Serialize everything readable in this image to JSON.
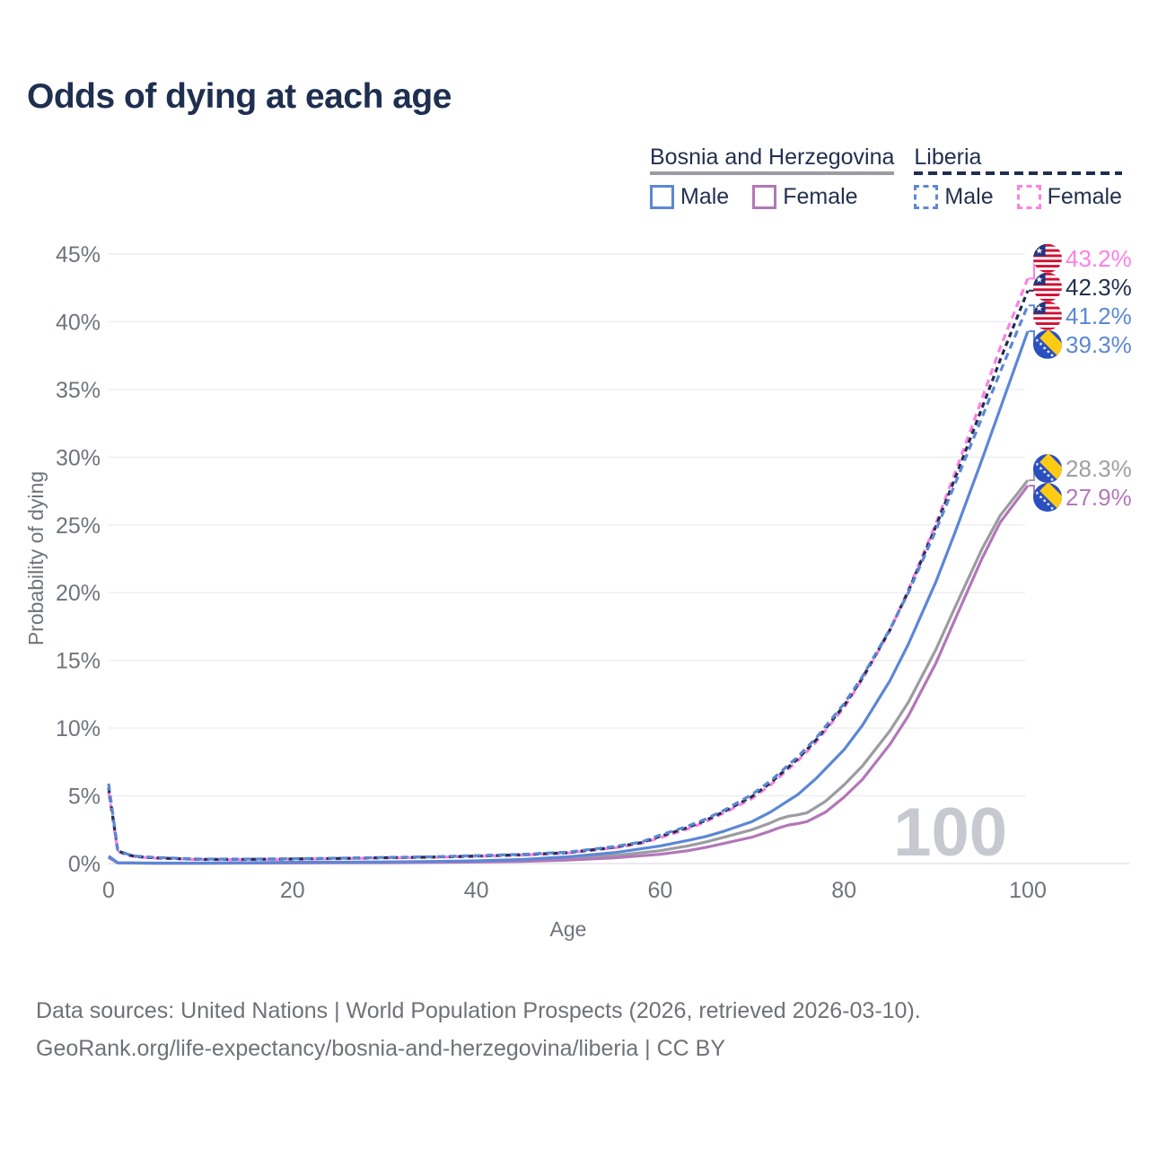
{
  "title": "Odds of dying at each age",
  "watermark": "100",
  "footer": {
    "line1": "Data sources: United Nations | World Population Prospects (2026, retrieved 2026-03-10).",
    "line2": "GeoRank.org/life-expectancy/bosnia-and-herzegovina/liberia | CC BY"
  },
  "legend": {
    "groups": [
      {
        "id": "bosnia",
        "label": "Bosnia and Herzegovina",
        "line_style": "solid",
        "line_color": "#9B9BA1",
        "items": [
          {
            "label": "Male",
            "color": "#5C87D6",
            "dashed": false
          },
          {
            "label": "Female",
            "color": "#B277B8",
            "dashed": false
          }
        ]
      },
      {
        "id": "liberia",
        "label": "Liberia",
        "line_style": "dashed",
        "line_color": "#1F2D4E",
        "items": [
          {
            "label": "Male",
            "color": "#5C87D6",
            "dashed": true
          },
          {
            "label": "Female",
            "color": "#FF80E3",
            "dashed": true
          }
        ]
      }
    ]
  },
  "flags": {
    "liberia": {
      "red": "#D21034",
      "white": "#FFFFFF",
      "blue": "#24357F",
      "star": "#FFFFFF"
    },
    "bosnia": {
      "blue": "#2A4FC0",
      "yellow": "#FECB14",
      "star": "#FFFFFF"
    }
  },
  "chart_data": {
    "type": "line",
    "title": "Odds of dying at each age",
    "xlabel": "Age",
    "ylabel": "Probability of dying",
    "xlim": [
      0,
      100
    ],
    "ylim": [
      0,
      45
    ],
    "x_ticks": [
      0,
      20,
      40,
      60,
      80,
      100
    ],
    "y_ticks": [
      0,
      5,
      10,
      15,
      20,
      25,
      30,
      35,
      40,
      45
    ],
    "y_tick_labels": [
      "0%",
      "5%",
      "10%",
      "15%",
      "20%",
      "25%",
      "30%",
      "35%",
      "40%",
      "45%"
    ],
    "grid": "horizontal",
    "legend_position": "top-right",
    "series": [
      {
        "id": "bosnia-both",
        "name": "Bosnia and Herzegovina — Both sexes",
        "flag": "bosnia",
        "color": "#9B9BA1",
        "label_color": "#9FA0A5",
        "role": "both",
        "dashed": false,
        "end_label": "28.3%",
        "points": [
          [
            0,
            0.5
          ],
          [
            1,
            0.05
          ],
          [
            5,
            0.02
          ],
          [
            10,
            0.02
          ],
          [
            15,
            0.04
          ],
          [
            20,
            0.06
          ],
          [
            25,
            0.08
          ],
          [
            30,
            0.09
          ],
          [
            35,
            0.11
          ],
          [
            40,
            0.15
          ],
          [
            45,
            0.22
          ],
          [
            50,
            0.36
          ],
          [
            55,
            0.58
          ],
          [
            60,
            0.95
          ],
          [
            63,
            1.3
          ],
          [
            65,
            1.6
          ],
          [
            67,
            1.95
          ],
          [
            70,
            2.5
          ],
          [
            72,
            3.0
          ],
          [
            73,
            3.3
          ],
          [
            74,
            3.5
          ],
          [
            75,
            3.6
          ],
          [
            76,
            3.75
          ],
          [
            78,
            4.6
          ],
          [
            80,
            5.8
          ],
          [
            82,
            7.2
          ],
          [
            85,
            9.8
          ],
          [
            87,
            11.9
          ],
          [
            90,
            15.8
          ],
          [
            92,
            18.8
          ],
          [
            95,
            23.2
          ],
          [
            97,
            25.7
          ],
          [
            100,
            28.3
          ]
        ]
      },
      {
        "id": "bosnia-female",
        "name": "Bosnia and Herzegovina — Female",
        "flag": "bosnia",
        "color": "#B277B8",
        "label_color": "#B279BA",
        "role": "female",
        "dashed": false,
        "end_label": "27.9%",
        "points": [
          [
            0,
            0.45
          ],
          [
            1,
            0.04
          ],
          [
            5,
            0.02
          ],
          [
            10,
            0.02
          ],
          [
            15,
            0.03
          ],
          [
            20,
            0.04
          ],
          [
            25,
            0.05
          ],
          [
            30,
            0.06
          ],
          [
            35,
            0.08
          ],
          [
            40,
            0.11
          ],
          [
            45,
            0.16
          ],
          [
            50,
            0.26
          ],
          [
            55,
            0.42
          ],
          [
            60,
            0.68
          ],
          [
            63,
            0.95
          ],
          [
            65,
            1.2
          ],
          [
            67,
            1.5
          ],
          [
            70,
            1.95
          ],
          [
            72,
            2.4
          ],
          [
            73,
            2.65
          ],
          [
            74,
            2.85
          ],
          [
            75,
            2.95
          ],
          [
            76,
            3.1
          ],
          [
            78,
            3.8
          ],
          [
            80,
            4.9
          ],
          [
            82,
            6.2
          ],
          [
            85,
            8.8
          ],
          [
            87,
            10.9
          ],
          [
            90,
            14.8
          ],
          [
            92,
            17.9
          ],
          [
            95,
            22.5
          ],
          [
            97,
            25.2
          ],
          [
            100,
            27.9
          ]
        ]
      },
      {
        "id": "bosnia-male",
        "name": "Bosnia and Herzegovina — Male",
        "flag": "bosnia",
        "color": "#5C87D6",
        "label_color": "#5C87D6",
        "role": "male",
        "dashed": false,
        "end_label": "39.3%",
        "points": [
          [
            0,
            0.55
          ],
          [
            1,
            0.06
          ],
          [
            5,
            0.03
          ],
          [
            10,
            0.03
          ],
          [
            15,
            0.06
          ],
          [
            20,
            0.09
          ],
          [
            25,
            0.1
          ],
          [
            30,
            0.12
          ],
          [
            35,
            0.15
          ],
          [
            40,
            0.2
          ],
          [
            45,
            0.3
          ],
          [
            50,
            0.5
          ],
          [
            55,
            0.8
          ],
          [
            60,
            1.3
          ],
          [
            63,
            1.7
          ],
          [
            65,
            2.0
          ],
          [
            67,
            2.4
          ],
          [
            70,
            3.1
          ],
          [
            72,
            3.8
          ],
          [
            75,
            5.1
          ],
          [
            77,
            6.3
          ],
          [
            80,
            8.4
          ],
          [
            82,
            10.2
          ],
          [
            85,
            13.5
          ],
          [
            87,
            16.2
          ],
          [
            90,
            20.8
          ],
          [
            92,
            24.3
          ],
          [
            95,
            29.8
          ],
          [
            97,
            33.6
          ],
          [
            100,
            39.3
          ]
        ]
      },
      {
        "id": "liberia-female",
        "name": "Liberia — Female",
        "flag": "liberia",
        "color": "#FF80E3",
        "label_color": "#FF80E3",
        "role": "female",
        "dashed": true,
        "end_label": "43.2%",
        "points": [
          [
            0,
            5.3
          ],
          [
            1,
            0.9
          ],
          [
            2,
            0.62
          ],
          [
            3,
            0.5
          ],
          [
            5,
            0.4
          ],
          [
            10,
            0.29
          ],
          [
            15,
            0.29
          ],
          [
            20,
            0.32
          ],
          [
            25,
            0.36
          ],
          [
            30,
            0.41
          ],
          [
            35,
            0.46
          ],
          [
            40,
            0.53
          ],
          [
            45,
            0.62
          ],
          [
            50,
            0.78
          ],
          [
            55,
            1.15
          ],
          [
            58,
            1.5
          ],
          [
            60,
            1.9
          ],
          [
            63,
            2.55
          ],
          [
            65,
            3.1
          ],
          [
            67,
            3.75
          ],
          [
            70,
            4.8
          ],
          [
            72,
            5.8
          ],
          [
            75,
            7.6
          ],
          [
            77,
            9.0
          ],
          [
            80,
            11.5
          ],
          [
            82,
            13.6
          ],
          [
            85,
            17.2
          ],
          [
            87,
            20.2
          ],
          [
            90,
            25.1
          ],
          [
            92,
            28.7
          ],
          [
            95,
            34.3
          ],
          [
            97,
            38.1
          ],
          [
            100,
            43.2
          ]
        ]
      },
      {
        "id": "liberia-both",
        "name": "Liberia — Both sexes",
        "flag": "liberia",
        "color": "#22304F",
        "label_color": "#22304F",
        "role": "both",
        "dashed": true,
        "end_label": "42.3%",
        "points": [
          [
            0,
            5.6
          ],
          [
            1,
            0.95
          ],
          [
            2,
            0.66
          ],
          [
            3,
            0.52
          ],
          [
            5,
            0.42
          ],
          [
            10,
            0.31
          ],
          [
            15,
            0.31
          ],
          [
            20,
            0.34
          ],
          [
            25,
            0.38
          ],
          [
            30,
            0.43
          ],
          [
            35,
            0.48
          ],
          [
            40,
            0.55
          ],
          [
            45,
            0.65
          ],
          [
            50,
            0.81
          ],
          [
            55,
            1.2
          ],
          [
            58,
            1.55
          ],
          [
            60,
            2.0
          ],
          [
            63,
            2.65
          ],
          [
            65,
            3.2
          ],
          [
            67,
            3.85
          ],
          [
            70,
            4.95
          ],
          [
            72,
            5.95
          ],
          [
            75,
            7.75
          ],
          [
            77,
            9.15
          ],
          [
            80,
            11.65
          ],
          [
            82,
            13.7
          ],
          [
            85,
            17.25
          ],
          [
            87,
            20.1
          ],
          [
            90,
            24.9
          ],
          [
            92,
            28.3
          ],
          [
            95,
            33.6
          ],
          [
            97,
            37.2
          ],
          [
            100,
            42.3
          ]
        ]
      },
      {
        "id": "liberia-male",
        "name": "Liberia — Male",
        "flag": "liberia",
        "color": "#5C87D6",
        "label_color": "#5C87D6",
        "role": "male",
        "dashed": true,
        "end_label": "41.2%",
        "points": [
          [
            0,
            5.9
          ],
          [
            1,
            1.0
          ],
          [
            2,
            0.7
          ],
          [
            3,
            0.55
          ],
          [
            5,
            0.45
          ],
          [
            10,
            0.33
          ],
          [
            15,
            0.33
          ],
          [
            20,
            0.36
          ],
          [
            25,
            0.4
          ],
          [
            30,
            0.45
          ],
          [
            35,
            0.5
          ],
          [
            40,
            0.58
          ],
          [
            45,
            0.68
          ],
          [
            50,
            0.85
          ],
          [
            55,
            1.25
          ],
          [
            58,
            1.6
          ],
          [
            60,
            2.1
          ],
          [
            63,
            2.75
          ],
          [
            65,
            3.3
          ],
          [
            67,
            3.95
          ],
          [
            70,
            5.1
          ],
          [
            72,
            6.1
          ],
          [
            75,
            7.9
          ],
          [
            77,
            9.3
          ],
          [
            80,
            11.8
          ],
          [
            82,
            13.8
          ],
          [
            85,
            17.3
          ],
          [
            87,
            20.0
          ],
          [
            90,
            24.6
          ],
          [
            92,
            27.9
          ],
          [
            95,
            32.9
          ],
          [
            97,
            36.3
          ],
          [
            100,
            41.2
          ]
        ]
      }
    ]
  }
}
